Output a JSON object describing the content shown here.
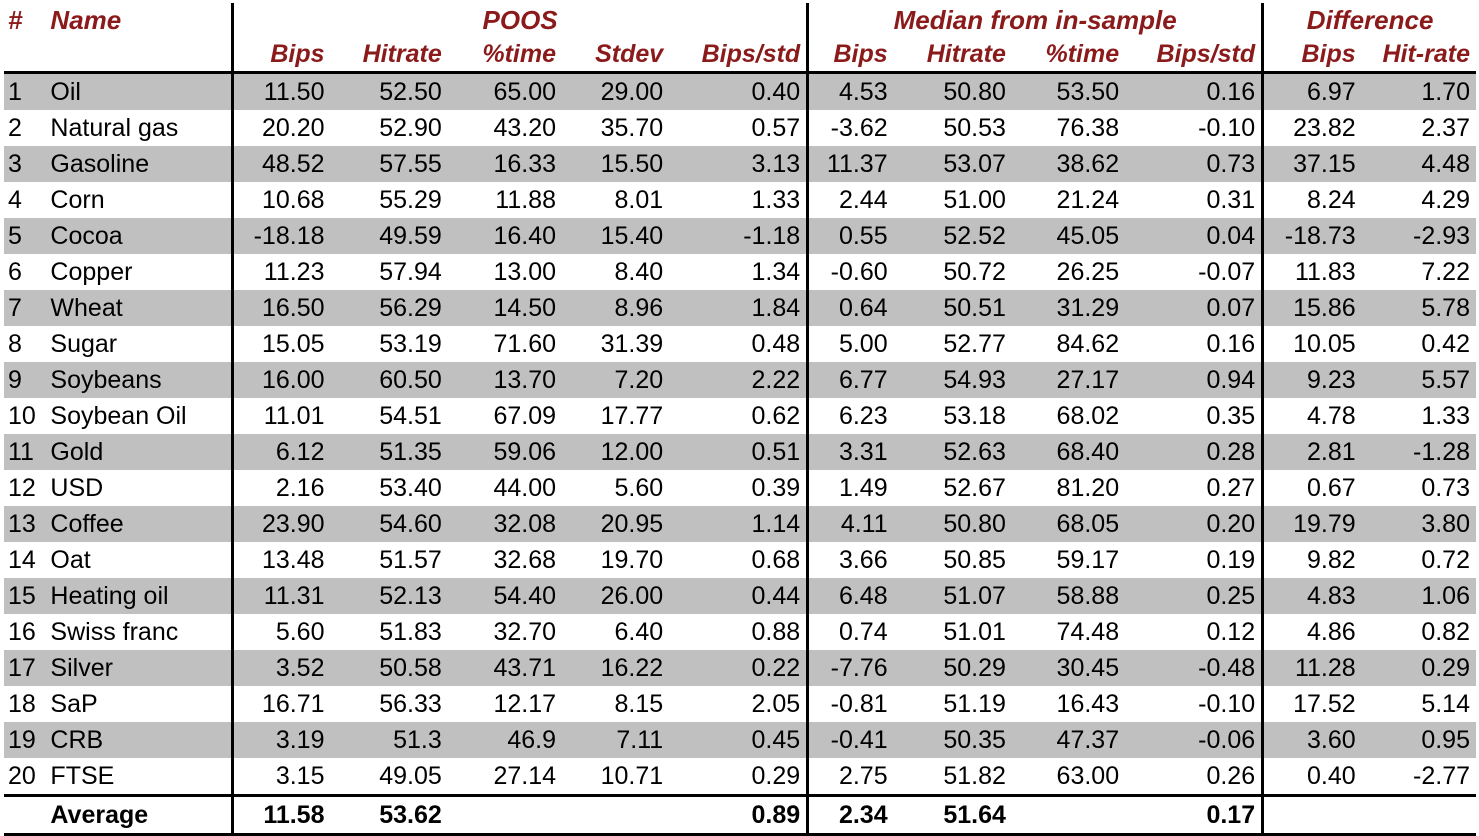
{
  "headers": {
    "hash": "#",
    "name": "Name",
    "groups": [
      "POOS",
      "Median from in-sample",
      "Difference"
    ],
    "poos_cols": [
      "Bips",
      "Hitrate",
      "%time",
      "Stdev",
      "Bips/std"
    ],
    "median_cols": [
      "Bips",
      "Hitrate",
      "%time",
      "Bips/std"
    ],
    "diff_cols": [
      "Bips",
      "Hit-rate"
    ]
  },
  "rows": [
    {
      "n": "1",
      "name": "Oil",
      "v": [
        "11.50",
        "52.50",
        "65.00",
        "29.00",
        "0.40",
        "4.53",
        "50.80",
        "53.50",
        "0.16",
        "6.97",
        "1.70"
      ]
    },
    {
      "n": "2",
      "name": "Natural gas",
      "v": [
        "20.20",
        "52.90",
        "43.20",
        "35.70",
        "0.57",
        "-3.62",
        "50.53",
        "76.38",
        "-0.10",
        "23.82",
        "2.37"
      ]
    },
    {
      "n": "3",
      "name": "Gasoline",
      "v": [
        "48.52",
        "57.55",
        "16.33",
        "15.50",
        "3.13",
        "11.37",
        "53.07",
        "38.62",
        "0.73",
        "37.15",
        "4.48"
      ]
    },
    {
      "n": "4",
      "name": "Corn",
      "v": [
        "10.68",
        "55.29",
        "11.88",
        "8.01",
        "1.33",
        "2.44",
        "51.00",
        "21.24",
        "0.31",
        "8.24",
        "4.29"
      ]
    },
    {
      "n": "5",
      "name": "Cocoa",
      "v": [
        "-18.18",
        "49.59",
        "16.40",
        "15.40",
        "-1.18",
        "0.55",
        "52.52",
        "45.05",
        "0.04",
        "-18.73",
        "-2.93"
      ]
    },
    {
      "n": "6",
      "name": "Copper",
      "v": [
        "11.23",
        "57.94",
        "13.00",
        "8.40",
        "1.34",
        "-0.60",
        "50.72",
        "26.25",
        "-0.07",
        "11.83",
        "7.22"
      ]
    },
    {
      "n": "7",
      "name": "Wheat",
      "v": [
        "16.50",
        "56.29",
        "14.50",
        "8.96",
        "1.84",
        "0.64",
        "50.51",
        "31.29",
        "0.07",
        "15.86",
        "5.78"
      ]
    },
    {
      "n": "8",
      "name": "Sugar",
      "v": [
        "15.05",
        "53.19",
        "71.60",
        "31.39",
        "0.48",
        "5.00",
        "52.77",
        "84.62",
        "0.16",
        "10.05",
        "0.42"
      ]
    },
    {
      "n": "9",
      "name": "Soybeans",
      "v": [
        "16.00",
        "60.50",
        "13.70",
        "7.20",
        "2.22",
        "6.77",
        "54.93",
        "27.17",
        "0.94",
        "9.23",
        "5.57"
      ]
    },
    {
      "n": "10",
      "name": "Soybean Oil",
      "v": [
        "11.01",
        "54.51",
        "67.09",
        "17.77",
        "0.62",
        "6.23",
        "53.18",
        "68.02",
        "0.35",
        "4.78",
        "1.33"
      ]
    },
    {
      "n": "11",
      "name": "Gold",
      "v": [
        "6.12",
        "51.35",
        "59.06",
        "12.00",
        "0.51",
        "3.31",
        "52.63",
        "68.40",
        "0.28",
        "2.81",
        "-1.28"
      ]
    },
    {
      "n": "12",
      "name": "USD",
      "v": [
        "2.16",
        "53.40",
        "44.00",
        "5.60",
        "0.39",
        "1.49",
        "52.67",
        "81.20",
        "0.27",
        "0.67",
        "0.73"
      ]
    },
    {
      "n": "13",
      "name": "Coffee",
      "v": [
        "23.90",
        "54.60",
        "32.08",
        "20.95",
        "1.14",
        "4.11",
        "50.80",
        "68.05",
        "0.20",
        "19.79",
        "3.80"
      ]
    },
    {
      "n": "14",
      "name": "Oat",
      "v": [
        "13.48",
        "51.57",
        "32.68",
        "19.70",
        "0.68",
        "3.66",
        "50.85",
        "59.17",
        "0.19",
        "9.82",
        "0.72"
      ]
    },
    {
      "n": "15",
      "name": "Heating oil",
      "v": [
        "11.31",
        "52.13",
        "54.40",
        "26.00",
        "0.44",
        "6.48",
        "51.07",
        "58.88",
        "0.25",
        "4.83",
        "1.06"
      ]
    },
    {
      "n": "16",
      "name": "Swiss franc",
      "v": [
        "5.60",
        "51.83",
        "32.70",
        "6.40",
        "0.88",
        "0.74",
        "51.01",
        "74.48",
        "0.12",
        "4.86",
        "0.82"
      ]
    },
    {
      "n": "17",
      "name": "Silver",
      "v": [
        "3.52",
        "50.58",
        "43.71",
        "16.22",
        "0.22",
        "-7.76",
        "50.29",
        "30.45",
        "-0.48",
        "11.28",
        "0.29"
      ]
    },
    {
      "n": "18",
      "name": "SaP",
      "v": [
        "16.71",
        "56.33",
        "12.17",
        "8.15",
        "2.05",
        "-0.81",
        "51.19",
        "16.43",
        "-0.10",
        "17.52",
        "5.14"
      ]
    },
    {
      "n": "19",
      "name": "CRB",
      "v": [
        "3.19",
        "51.3",
        "46.9",
        "7.11",
        "0.45",
        "-0.41",
        "50.35",
        "47.37",
        "-0.06",
        "3.60",
        "0.95"
      ]
    },
    {
      "n": "20",
      "name": "FTSE",
      "v": [
        "3.15",
        "49.05",
        "27.14",
        "10.71",
        "0.29",
        "2.75",
        "51.82",
        "63.00",
        "0.26",
        "0.40",
        "-2.77"
      ]
    }
  ],
  "average": {
    "label": "Average",
    "v": [
      "11.58",
      "53.62",
      "",
      "",
      "0.89",
      "2.34",
      "51.64",
      "",
      "0.17",
      "",
      ""
    ]
  }
}
